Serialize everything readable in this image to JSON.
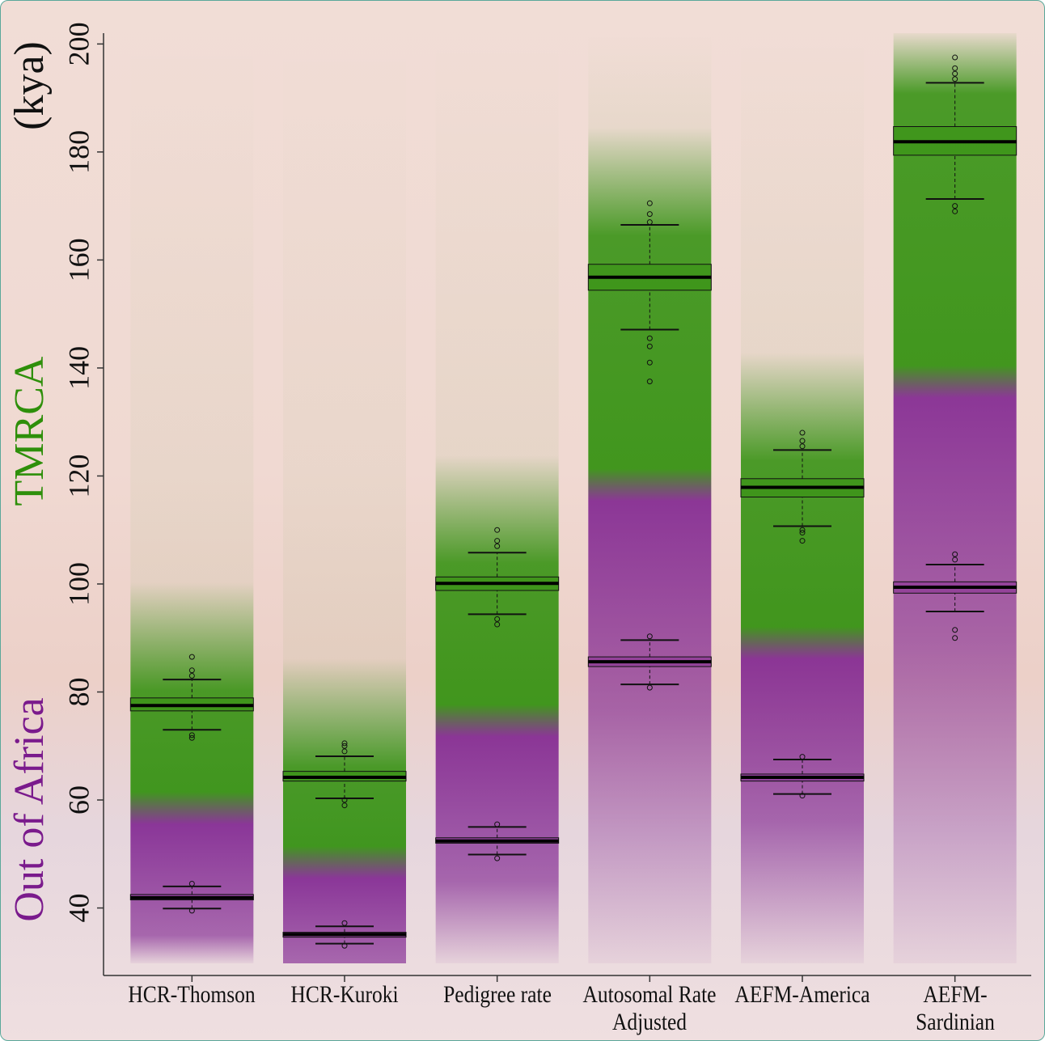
{
  "chart_data": {
    "type": "box",
    "y_label": "(kya)",
    "categories": [
      "HCR-Thomson",
      "HCR-Kuroki",
      "Pedigree rate",
      "Autosomal Rate\nAdjusted",
      "AEFM-America",
      "AEFM-Sardinian"
    ],
    "ylim": [
      27.5,
      202
    ],
    "yticks": [
      40,
      60,
      80,
      100,
      120,
      140,
      160,
      180,
      200
    ],
    "series": [
      {
        "name": "Out of Africa",
        "color": "#7a1a8c",
        "low": [
          39.9,
          33.4,
          49.9,
          81.4,
          61.1,
          94.9
        ],
        "q1": [
          41.5,
          34.6,
          52.0,
          84.7,
          63.5,
          98.3
        ],
        "median": [
          41.9,
          35.1,
          52.4,
          85.6,
          64.2,
          99.4
        ],
        "q3": [
          42.5,
          35.5,
          53.0,
          86.5,
          64.8,
          100.4
        ],
        "high": [
          44.0,
          36.6,
          55.0,
          89.6,
          67.5,
          103.6
        ],
        "outliers": [
          [
            39.5,
            44.5
          ],
          [
            33,
            37.2
          ],
          [
            49.2,
            55.5
          ],
          [
            80.8,
            90.3
          ],
          [
            60.8,
            68
          ],
          [
            90,
            91.5,
            104.5,
            105.5
          ]
        ]
      },
      {
        "name": "TMRCA",
        "color": "#2e8f0a",
        "low": [
          73.0,
          60.3,
          94.4,
          147.1,
          110.7,
          171.3
        ],
        "q1": [
          76.5,
          63.5,
          98.8,
          154.4,
          116.1,
          179.4
        ],
        "median": [
          77.5,
          64.2,
          100.1,
          156.8,
          117.9,
          181.9
        ],
        "q3": [
          78.9,
          65.3,
          101.3,
          159.2,
          119.5,
          184.7
        ],
        "high": [
          82.3,
          68.1,
          105.8,
          166.5,
          124.8,
          192.8
        ],
        "outliers": [
          [
            71.5,
            72,
            83,
            84,
            86.5
          ],
          [
            59,
            60,
            69,
            70,
            70.5
          ],
          [
            92.5,
            93.5,
            107,
            108,
            110
          ],
          [
            137.5,
            141,
            144,
            145.5,
            167,
            168.5,
            170.5
          ],
          [
            108,
            109.5,
            110,
            125.5,
            126.5,
            128
          ],
          [
            169,
            170,
            193.5,
            194.5,
            195.5,
            197.5
          ]
        ]
      }
    ]
  }
}
